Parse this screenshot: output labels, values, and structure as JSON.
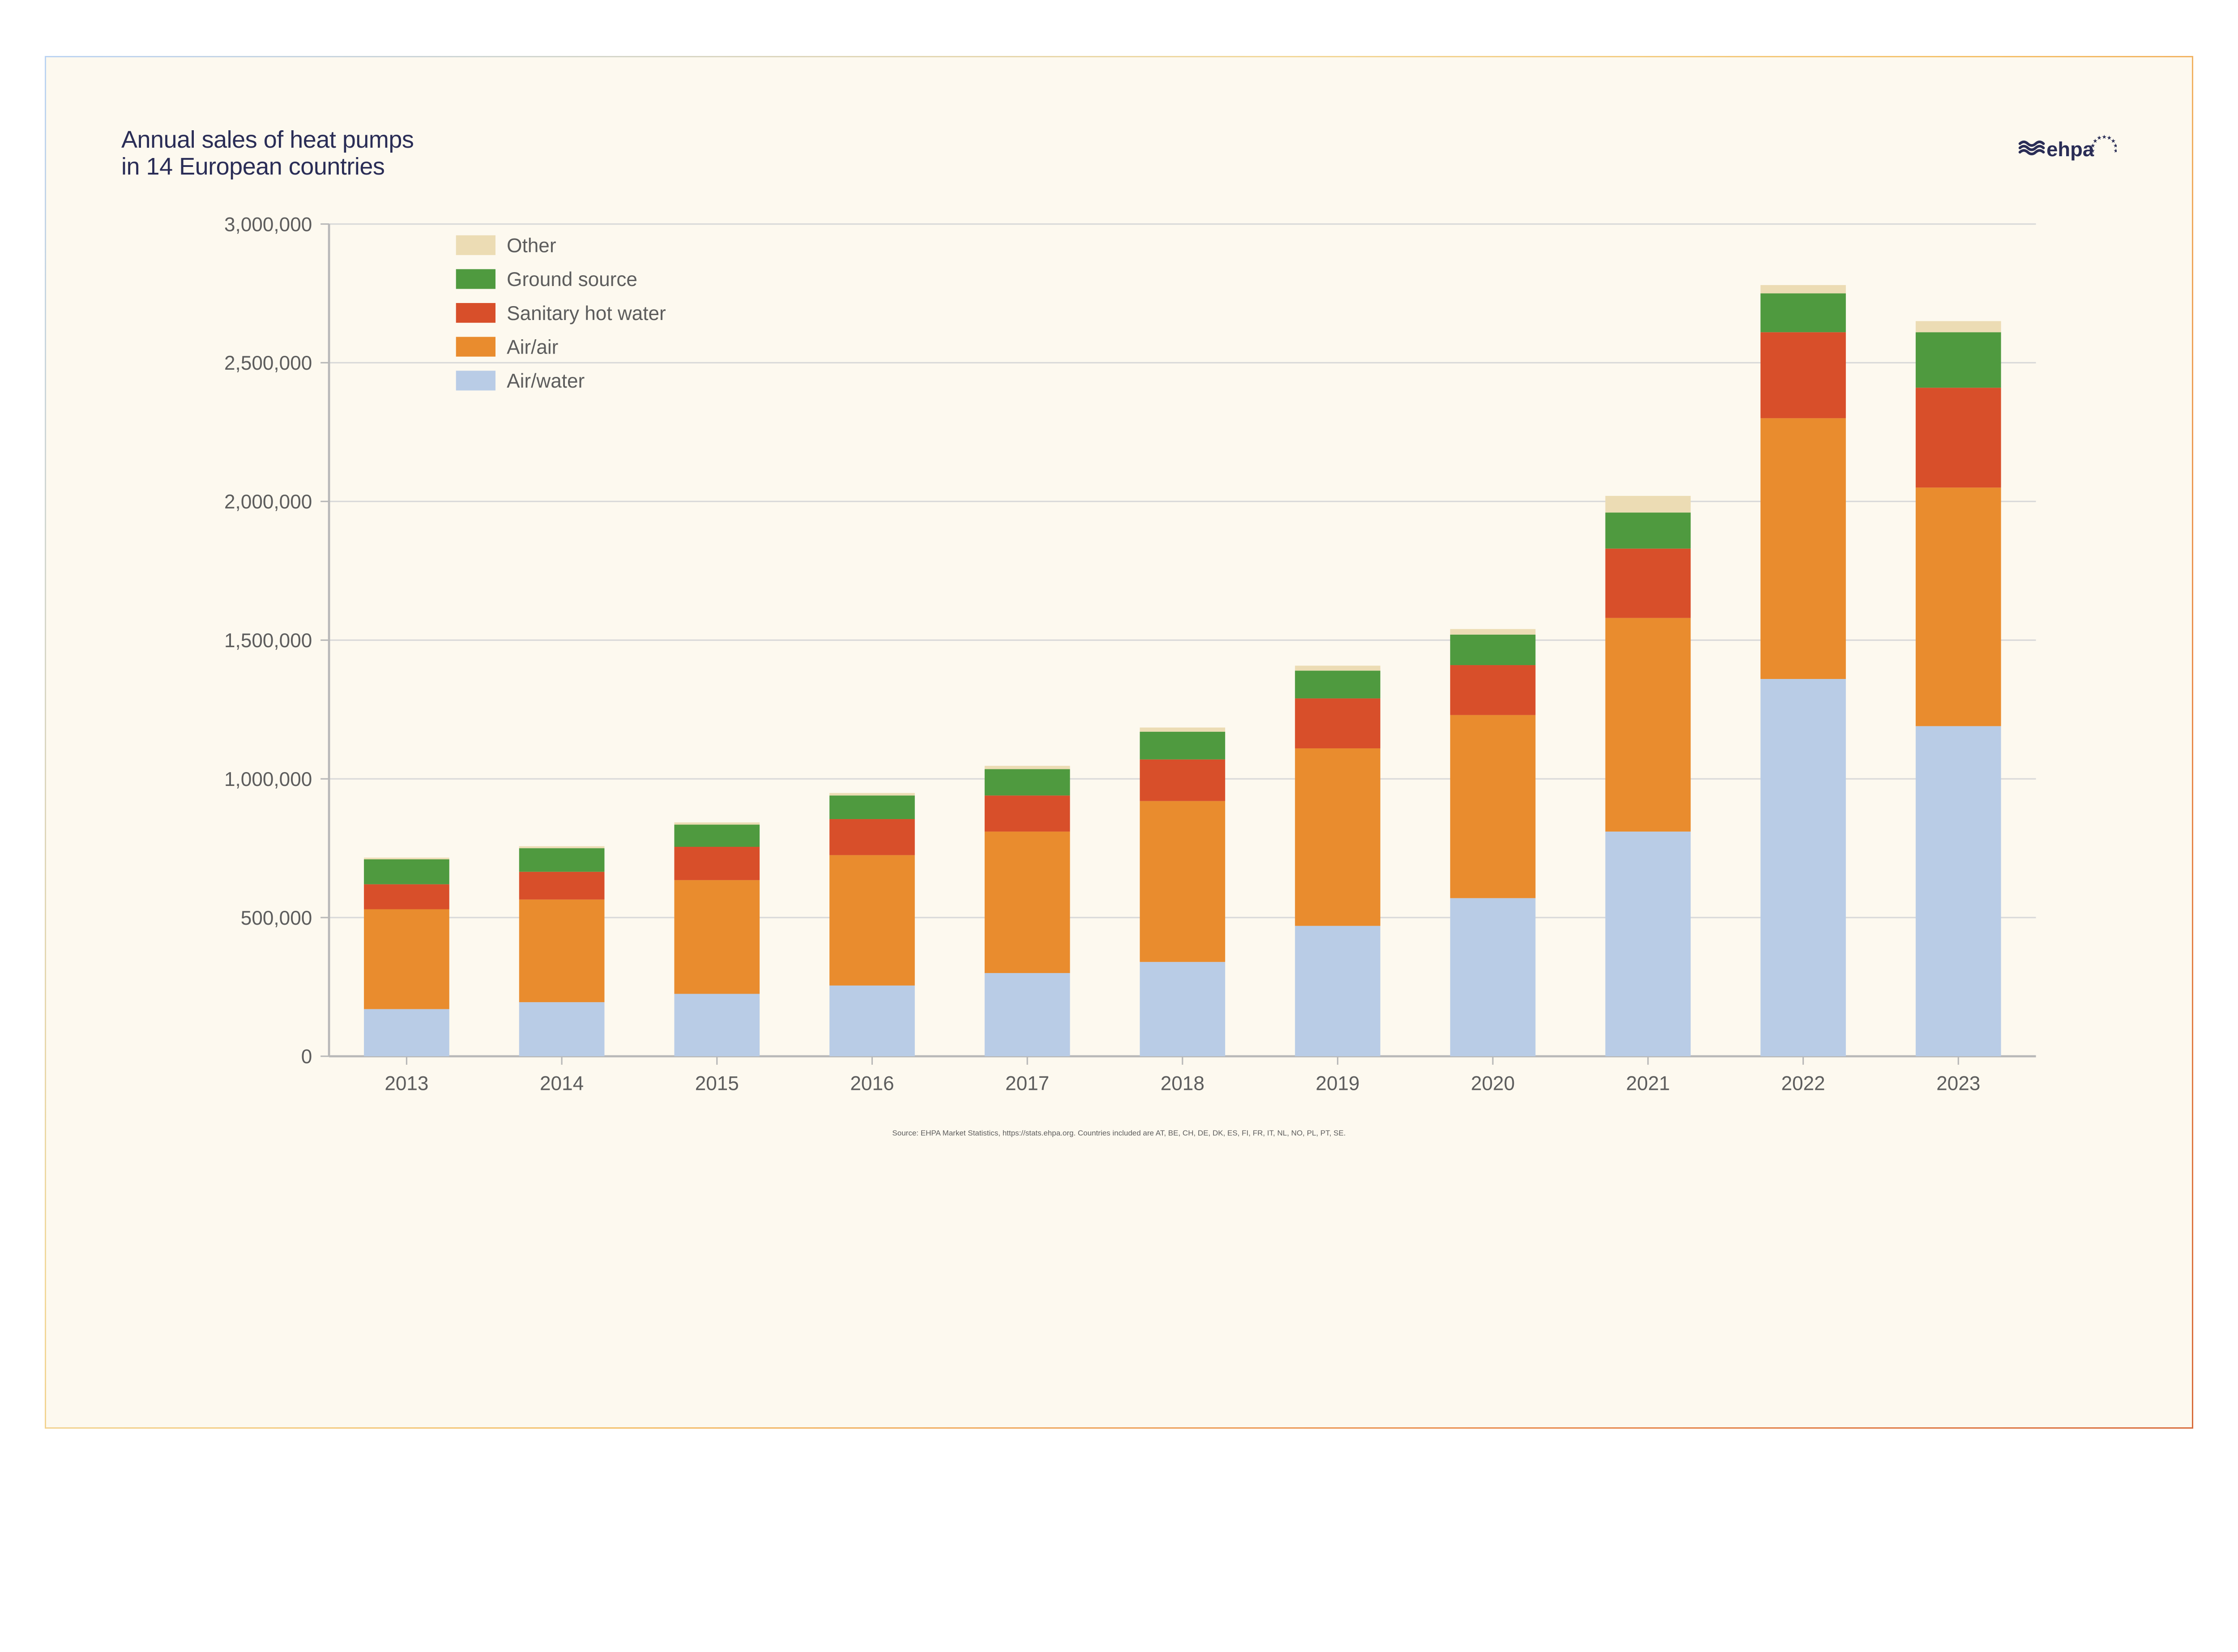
{
  "title_line1": "Annual sales of heat pumps",
  "title_line2": "in 14 European countries",
  "logo_text": "ehpa",
  "logo_color": "#2a2d56",
  "source_text": "Source: EHPA Market Statistics, https://stats.ehpa.org.  Countries included are AT, BE, CH, DE, DK, ES, FI, FR, IT, NL, NO, PL, PT, SE.",
  "chart": {
    "type": "stacked-bar",
    "background_color": "#fdf9ef",
    "grid_color": "#d9d9d9",
    "axis_color": "#b8b8b8",
    "tick_font_size": 14,
    "tick_color": "#5d5d5d",
    "legend_font_size": 14,
    "y": {
      "min": 0,
      "max": 3000000,
      "step": 500000
    },
    "ytick_labels": [
      "0",
      "500,000",
      "1,000,000",
      "1,500,000",
      "2,000,000",
      "2,500,000",
      "3,000,000"
    ],
    "categories": [
      "2013",
      "2014",
      "2015",
      "2016",
      "2017",
      "2018",
      "2019",
      "2020",
      "2021",
      "2022",
      "2023"
    ],
    "series": [
      {
        "key": "air_water",
        "label": "Air/water",
        "color": "#b9cce6"
      },
      {
        "key": "air_air",
        "label": "Air/air",
        "color": "#e98c2e"
      },
      {
        "key": "sanitary",
        "label": "Sanitary hot water",
        "color": "#d84f2a"
      },
      {
        "key": "ground",
        "label": "Ground source",
        "color": "#4f9a3f"
      },
      {
        "key": "other",
        "label": "Other",
        "color": "#ecdcb4"
      }
    ],
    "legend_order": [
      "other",
      "ground",
      "sanitary",
      "air_air",
      "air_water"
    ],
    "bar_width_ratio": 0.55,
    "values": {
      "air_water": [
        170000,
        195000,
        225000,
        255000,
        300000,
        340000,
        470000,
        570000,
        810000,
        1360000,
        1190000
      ],
      "air_air": [
        360000,
        370000,
        410000,
        470000,
        510000,
        580000,
        640000,
        660000,
        770000,
        940000,
        860000
      ],
      "sanitary": [
        90000,
        100000,
        120000,
        130000,
        130000,
        150000,
        180000,
        180000,
        250000,
        310000,
        360000
      ],
      "ground": [
        90000,
        85000,
        80000,
        85000,
        95000,
        100000,
        100000,
        110000,
        130000,
        140000,
        200000
      ],
      "other": [
        6000,
        7000,
        8000,
        9000,
        12000,
        15000,
        18000,
        20000,
        60000,
        30000,
        40000
      ]
    }
  }
}
